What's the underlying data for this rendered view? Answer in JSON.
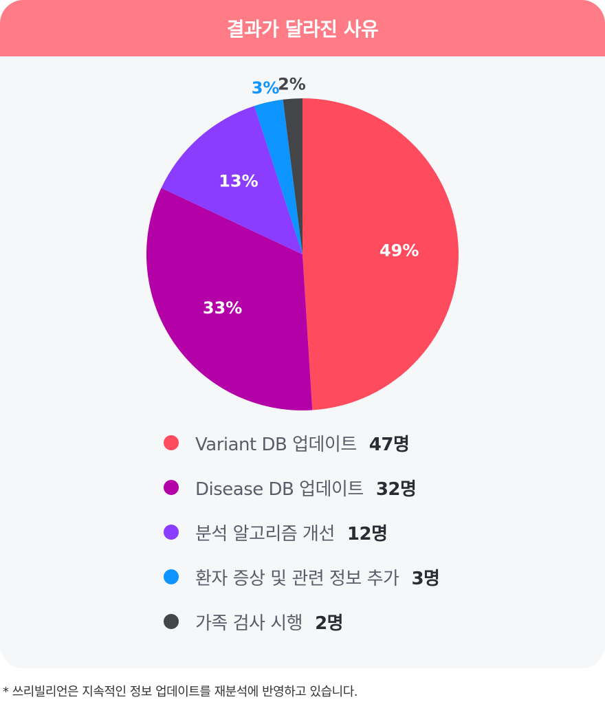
{
  "header": {
    "title": "결과가 달라진 사유"
  },
  "chart_data": {
    "type": "pie",
    "title": "결과가 달라진 사유",
    "legend_position": "bottom",
    "slices": [
      {
        "name": "Variant DB 업데이트",
        "value": 47,
        "percent": 49,
        "percent_label": "49%",
        "count_label": "47명",
        "color": "#ff4b5e"
      },
      {
        "name": "Disease DB 업데이트",
        "value": 32,
        "percent": 33,
        "percent_label": "33%",
        "count_label": "32명",
        "color": "#b400a7"
      },
      {
        "name": "분석 알고리즘 개선",
        "value": 12,
        "percent": 13,
        "percent_label": "13%",
        "count_label": "12명",
        "color": "#8a3cff"
      },
      {
        "name": "환자 증상 및 관련 정보 추가",
        "value": 3,
        "percent": 3,
        "percent_label": "3%",
        "count_label": "3명",
        "color": "#0d94ff"
      },
      {
        "name": "가족 검사 시행",
        "value": 2,
        "percent": 2,
        "percent_label": "2%",
        "count_label": "2명",
        "color": "#444549"
      }
    ]
  },
  "footnote": "* 쓰리빌리언은 지속적인 정보 업데이트를 재분석에 반영하고 있습니다."
}
